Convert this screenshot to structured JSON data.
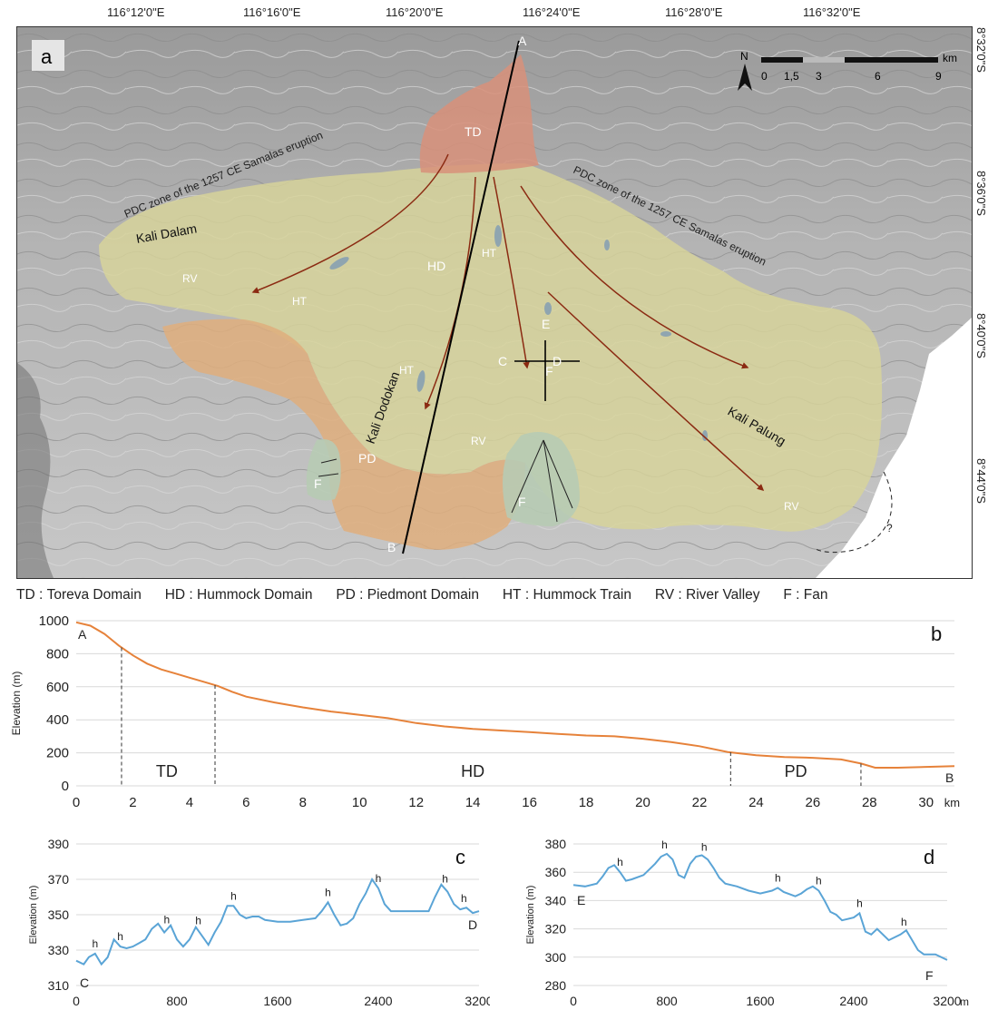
{
  "map": {
    "panel_letter": "a",
    "top_longitudes": [
      "116°12'0\"E",
      "116°16'0\"E",
      "116°20'0\"E",
      "116°24'0\"E",
      "116°28'0\"E",
      "116°32'0\"E"
    ],
    "right_latitudes": [
      "8°32'0\"S",
      "8°36'0\"S",
      "8°40'0\"S",
      "8°44'0\"S"
    ],
    "north_label": "N",
    "scale_labels": [
      "0",
      "1,5",
      "3",
      "6",
      "9"
    ],
    "scale_unit": "km",
    "zone_labels": {
      "td": "TD",
      "hd": "HD",
      "pd": "PD",
      "ht": "HT",
      "rv": "RV",
      "f": "F",
      "question": "?"
    },
    "river_names": {
      "dalam": "Kali Dalam",
      "dodokan": "Kali Dodokan",
      "palung": "Kali Palung"
    },
    "pdc_label": "PDC zone of the 1257 CE Samalas eruption",
    "profile_points": {
      "a": "A",
      "b": "B",
      "c": "C",
      "d": "D",
      "e": "E",
      "f": "F"
    }
  },
  "legend": [
    {
      "code": "TD",
      "name": "Toreva Domain"
    },
    {
      "code": "HD",
      "name": "Hummock Domain"
    },
    {
      "code": "PD",
      "name": "Piedmont Domain"
    },
    {
      "code": "HT",
      "name": "Hummock Train"
    },
    {
      "code": "RV",
      "name": "River Valley"
    },
    {
      "code": "F",
      "name": "Fan"
    }
  ],
  "colors": {
    "td": "#d8917a",
    "hd": "#d8d49a",
    "pd": "#dfae7c",
    "fan": "#b7cbb4",
    "arrow": "#8b2a12",
    "profile_b": "#e6823a",
    "profile_cd": "#5aa4d6"
  },
  "chart_data": [
    {
      "panel": "b",
      "type": "line",
      "xlabel": "km",
      "ylabel": "Elevation (m)",
      "xlim": [
        0,
        31
      ],
      "ylim": [
        0,
        1000
      ],
      "xticks": [
        0,
        2,
        4,
        6,
        8,
        10,
        12,
        14,
        16,
        18,
        20,
        22,
        24,
        26,
        28,
        30
      ],
      "yticks": [
        0,
        200,
        400,
        600,
        800,
        1000
      ],
      "x": [
        0,
        0.5,
        1,
        1.5,
        2,
        2.5,
        3,
        3.5,
        4,
        4.5,
        5,
        5.5,
        6,
        7,
        8,
        9,
        10,
        11,
        12,
        13,
        14,
        15,
        16,
        17,
        18,
        19,
        20,
        21,
        22,
        23,
        24,
        25,
        26,
        27,
        27.7,
        28.2,
        29,
        30,
        31
      ],
      "y": [
        990,
        970,
        920,
        850,
        790,
        740,
        705,
        680,
        655,
        630,
        605,
        570,
        540,
        505,
        475,
        450,
        430,
        410,
        380,
        360,
        345,
        335,
        325,
        315,
        305,
        300,
        285,
        265,
        240,
        205,
        185,
        175,
        170,
        160,
        135,
        110,
        110,
        115,
        120
      ],
      "end_labels": {
        "start": "A",
        "end": "B"
      },
      "domain_boundaries_km": [
        1.6,
        4.9,
        23.1,
        27.7
      ],
      "domain_labels": [
        {
          "text": "TD",
          "x": 3.2
        },
        {
          "text": "HD",
          "x": 14
        },
        {
          "text": "PD",
          "x": 25.4
        }
      ]
    },
    {
      "panel": "c",
      "type": "line",
      "xlabel": "m",
      "ylabel": "Elevation (m)",
      "xlim": [
        0,
        3200
      ],
      "ylim": [
        310,
        390
      ],
      "xticks": [
        0,
        800,
        1600,
        2400,
        3200
      ],
      "yticks": [
        310,
        330,
        350,
        370,
        390
      ],
      "x": [
        0,
        60,
        100,
        150,
        200,
        250,
        300,
        350,
        400,
        450,
        500,
        550,
        600,
        650,
        700,
        750,
        800,
        850,
        900,
        950,
        1000,
        1050,
        1100,
        1150,
        1200,
        1250,
        1300,
        1350,
        1400,
        1450,
        1500,
        1600,
        1700,
        1800,
        1900,
        1950,
        2000,
        2050,
        2100,
        2150,
        2200,
        2250,
        2300,
        2350,
        2400,
        2450,
        2500,
        2600,
        2700,
        2800,
        2850,
        2900,
        2950,
        3000,
        3050,
        3100,
        3150,
        3200
      ],
      "y": [
        324,
        322,
        326,
        328,
        322,
        326,
        336,
        332,
        331,
        332,
        334,
        336,
        342,
        345,
        340,
        344,
        336,
        332,
        336,
        343,
        338,
        333,
        340,
        346,
        355,
        355,
        350,
        348,
        349,
        349,
        347,
        346,
        346,
        347,
        348,
        352,
        357,
        350,
        344,
        345,
        348,
        356,
        362,
        370,
        365,
        356,
        352,
        352,
        352,
        352,
        360,
        367,
        363,
        356,
        353,
        354,
        351,
        352
      ],
      "hummock_label": "h",
      "hummock_x": [
        150,
        350,
        720,
        970,
        1250,
        2000,
        2400,
        2930,
        3080
      ],
      "end_labels": {
        "start": "C",
        "end": "D"
      }
    },
    {
      "panel": "d",
      "type": "line",
      "xlabel": "m",
      "ylabel": "Elevation (m)",
      "xlim": [
        0,
        3200
      ],
      "ylim": [
        280,
        380
      ],
      "xticks": [
        0,
        800,
        1600,
        2400,
        3200
      ],
      "yticks": [
        280,
        300,
        320,
        340,
        360,
        380
      ],
      "x": [
        0,
        100,
        200,
        250,
        300,
        350,
        400,
        450,
        500,
        600,
        700,
        750,
        800,
        850,
        900,
        950,
        1000,
        1050,
        1100,
        1150,
        1200,
        1250,
        1300,
        1400,
        1500,
        1600,
        1700,
        1750,
        1800,
        1900,
        1950,
        2000,
        2050,
        2100,
        2150,
        2200,
        2250,
        2300,
        2400,
        2450,
        2500,
        2550,
        2600,
        2700,
        2800,
        2850,
        2900,
        2950,
        3000,
        3100,
        3200
      ],
      "y": [
        351,
        350,
        352,
        357,
        363,
        365,
        360,
        354,
        355,
        358,
        366,
        371,
        373,
        369,
        358,
        356,
        366,
        371,
        372,
        369,
        363,
        356,
        352,
        350,
        347,
        345,
        347,
        349,
        346,
        343,
        345,
        348,
        350,
        347,
        340,
        332,
        330,
        326,
        328,
        331,
        318,
        316,
        320,
        312,
        316,
        319,
        312,
        305,
        302,
        302,
        298
      ],
      "hummock_label": "h",
      "hummock_x": [
        400,
        780,
        1120,
        1750,
        2100,
        2450,
        2830
      ],
      "end_labels": {
        "start": "E",
        "end": "F"
      }
    }
  ]
}
